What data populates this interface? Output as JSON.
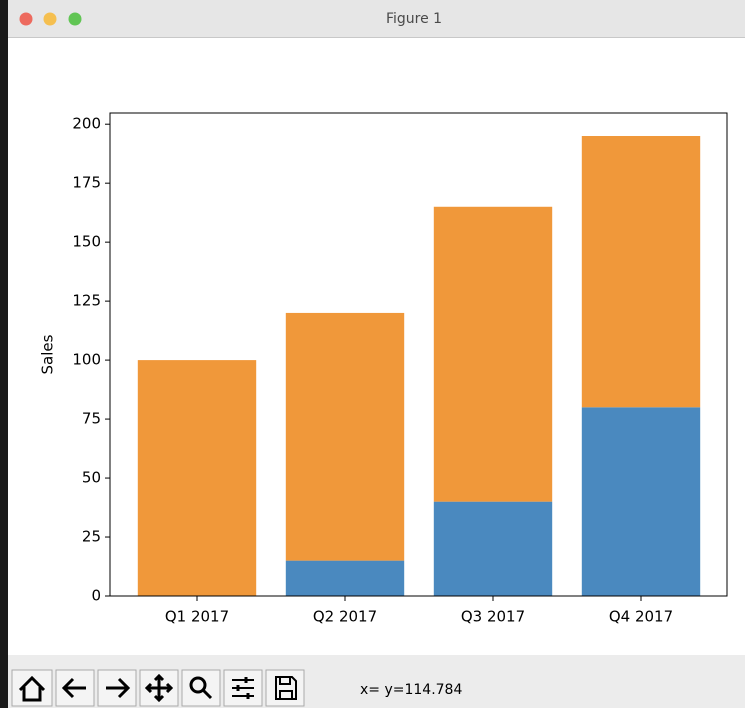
{
  "window": {
    "title": "Figure 1",
    "status": "x= y=114.784"
  },
  "chart_data": {
    "type": "bar",
    "stacked": true,
    "ylabel": "Sales",
    "categories": [
      "Q1 2017",
      "Q2 2017",
      "Q3 2017",
      "Q4 2017"
    ],
    "series": [
      {
        "color": "#4a89bf",
        "values": [
          0,
          15,
          40,
          80
        ]
      },
      {
        "color": "#f0983a",
        "values": [
          100,
          105,
          125,
          115
        ]
      }
    ],
    "ylim": [
      0,
      204.75
    ],
    "yticks": [
      0,
      25,
      50,
      75,
      100,
      125,
      150,
      175,
      200
    ],
    "grid": false
  }
}
